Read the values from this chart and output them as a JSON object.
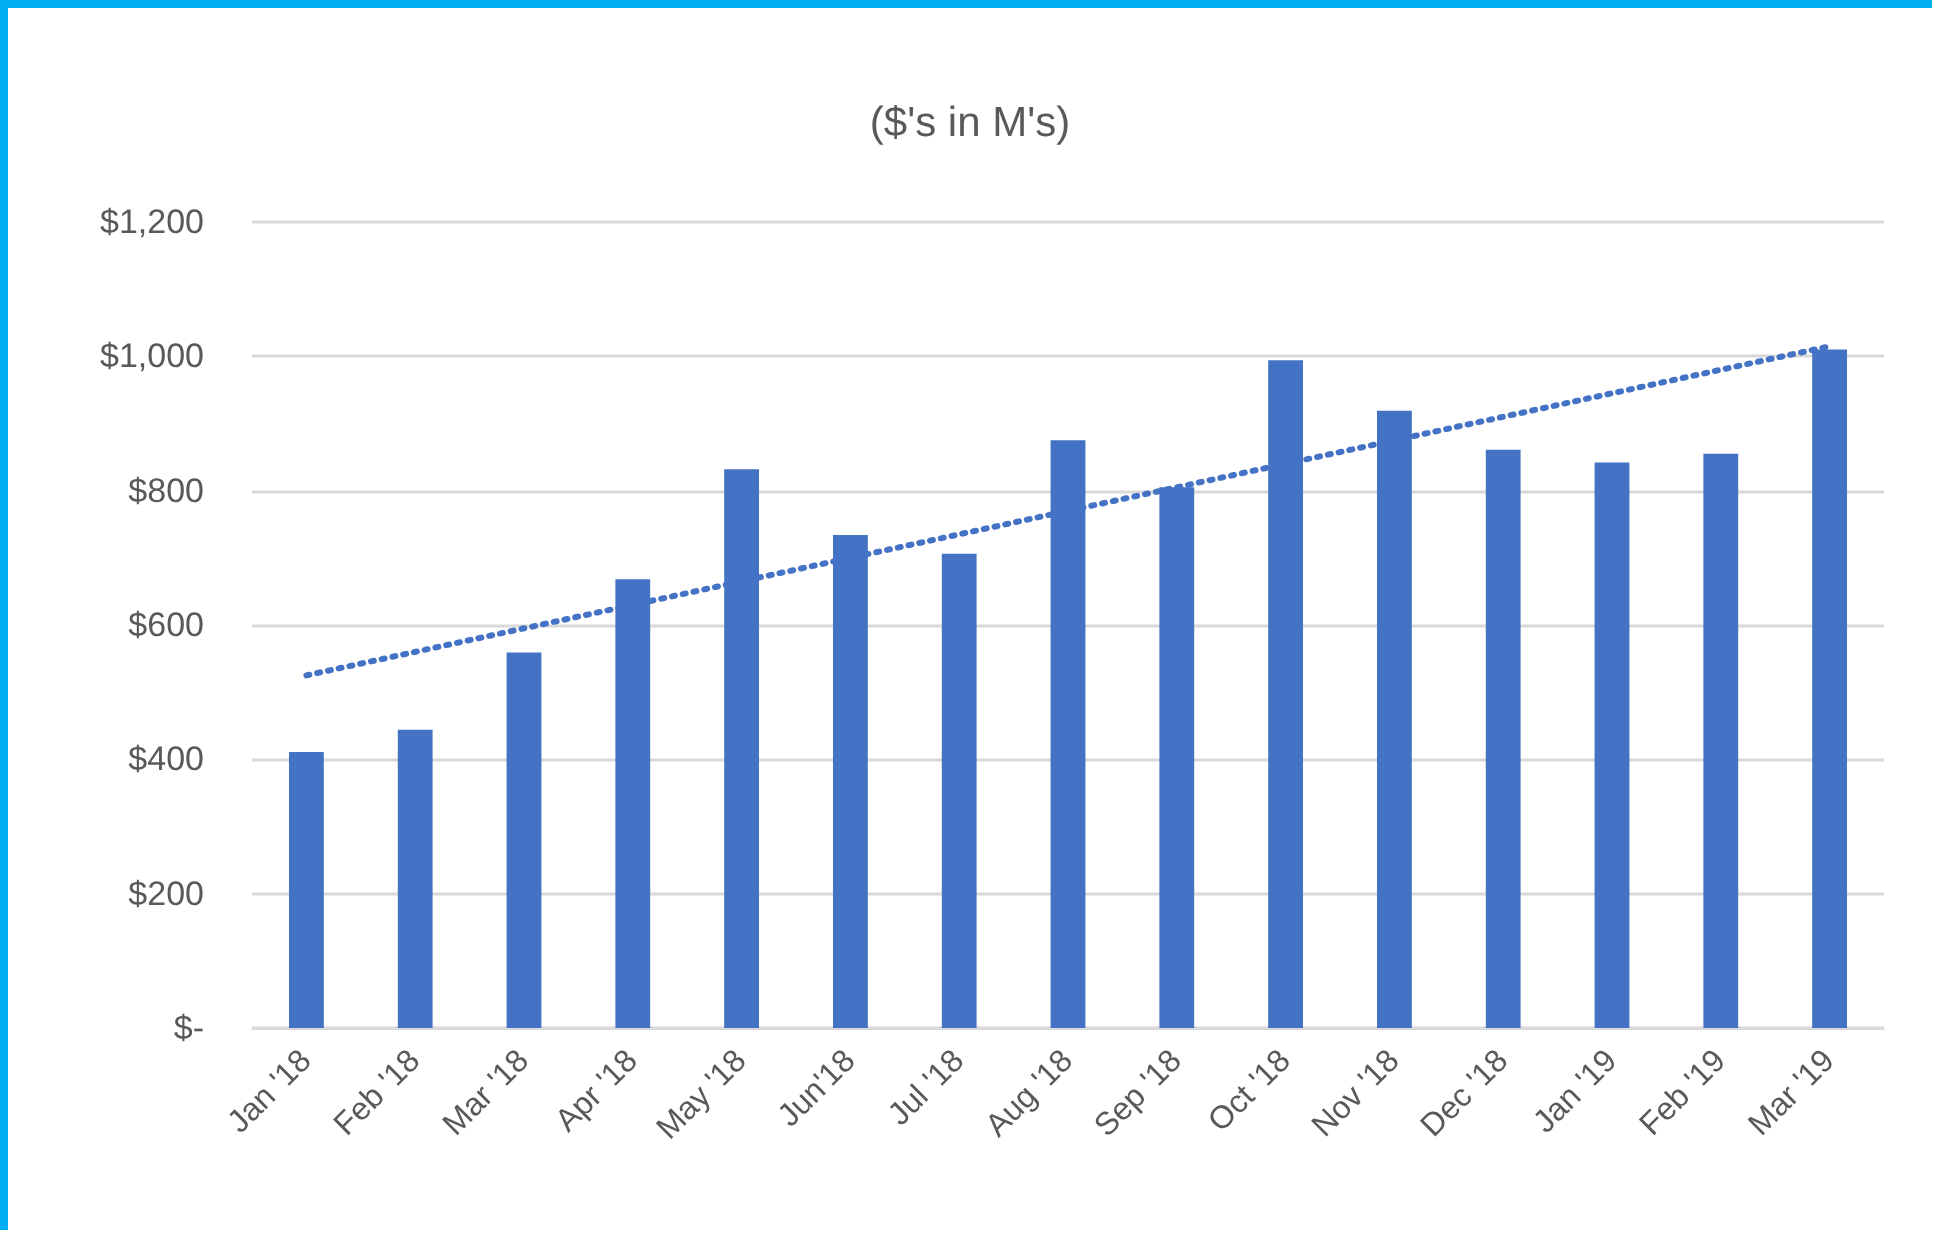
{
  "chart_data": {
    "type": "bar",
    "title": "($'s in M's)",
    "categories": [
      "Jan '18",
      "Feb '18",
      "Mar '18",
      "Apr '18",
      "May '18",
      "Jun'18",
      "Jul '18",
      "Aug '18",
      "Sep '18",
      "Oct '18",
      "Nov '18",
      "Dec '18",
      "Jan '19",
      "Feb '19",
      "Mar '19"
    ],
    "series": [
      {
        "color": "#4472c4",
        "values": [
          411,
          444,
          559,
          668,
          832,
          734,
          706,
          875,
          805,
          994,
          919,
          861,
          842,
          855,
          1010
        ]
      },
      {
        "type": "line",
        "color": "#4472c4",
        "x": [
          "Jan '18",
          "Mar '19"
        ],
        "values": [
          525,
          1015
        ],
        "line_style": "dotted",
        "marker": "none"
      }
    ],
    "ylim": [
      0,
      1200
    ],
    "yticks": [
      {
        "value": 0,
        "label": "$-"
      },
      {
        "value": 200,
        "label": "$200"
      },
      {
        "value": 400,
        "label": "$400"
      },
      {
        "value": 600,
        "label": "$600"
      },
      {
        "value": 800,
        "label": "$800"
      },
      {
        "value": 1000,
        "label": "$1,000"
      },
      {
        "value": 1200,
        "label": "$1,200"
      }
    ],
    "grid": "y"
  }
}
